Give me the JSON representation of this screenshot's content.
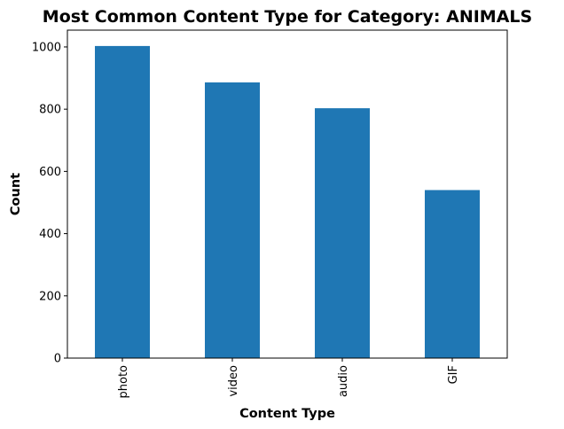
{
  "chart_data": {
    "type": "bar",
    "title": "Most Common Content Type for Category: ANIMALS",
    "xlabel": "Content Type",
    "ylabel": "Count",
    "categories": [
      "photo",
      "video",
      "audio",
      "GIF"
    ],
    "values": [
      1003,
      886,
      803,
      540
    ],
    "ylim": [
      0,
      1054
    ],
    "yticks": [
      0,
      200,
      400,
      600,
      800,
      1000
    ],
    "bar_color": "#1f77b4",
    "grid": false,
    "legend": "none"
  }
}
